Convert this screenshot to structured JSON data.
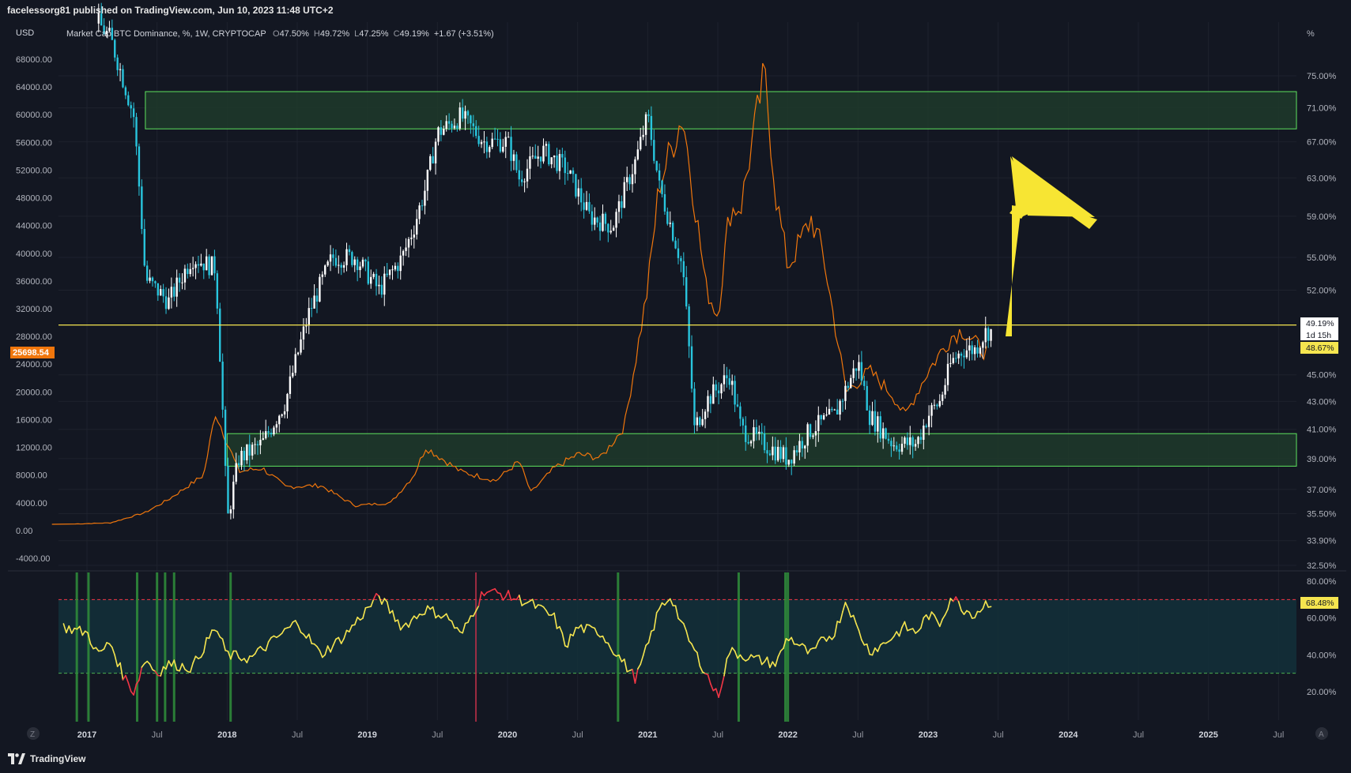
{
  "header": {
    "published": "facelessorg81 published on TradingView.com, Jun 10, 2023 11:48 UTC+2"
  },
  "legend": {
    "currency": "USD",
    "symbol": "Market Cap BTC Dominance, %, 1W, CRYPTOCAP",
    "o_label": "O",
    "o": "47.50%",
    "h_label": "H",
    "h": "49.72%",
    "l_label": "L",
    "l": "47.25%",
    "c_label": "C",
    "c": "49.19%",
    "change": "+1.67 (+3.51%)"
  },
  "left_price_tag": "25698.54",
  "right_tags": {
    "current": "49.19%",
    "countdown": "1d 15h",
    "secondary": "48.67%",
    "rsi": "68.48%"
  },
  "right_unit": "%",
  "bottom_buttons": {
    "left": "Z",
    "right": "A"
  },
  "footer": {
    "brand": "TradingView"
  },
  "colors": {
    "background": "#131722",
    "candle_up": "#ffffff",
    "candle_down": "#29c6de",
    "btc_line": "#f0760c",
    "zone_fill": "#1e3a2a",
    "zone_border": "#5ee35e",
    "yellow_line": "#f5e54f",
    "arrow": "#f7e533",
    "rsi_line": "#f5e54f",
    "rsi_overbought": "#f23645",
    "rsi_band": "#13303a",
    "signal_green": "#2f8a3a",
    "signal_red": "#c0304a"
  },
  "chart_data": [
    {
      "type": "candlestick",
      "title": "Market Cap BTC Dominance, %, 1W, CRYPTOCAP",
      "right_axis_ticks": [
        "75.00%",
        "71.00%",
        "67.00%",
        "63.00%",
        "59.00%",
        "55.00%",
        "52.00%",
        "49.00%",
        "45.00%",
        "43.00%",
        "41.00%",
        "39.00%",
        "37.00%",
        "35.50%",
        "33.90%",
        "32.50%"
      ],
      "left_axis_ticks": [
        "68000.00",
        "64000.00",
        "60000.00",
        "56000.00",
        "52000.00",
        "48000.00",
        "44000.00",
        "40000.00",
        "36000.00",
        "32000.00",
        "28000.00",
        "24000.00",
        "20000.00",
        "16000.00",
        "12000.00",
        "8000.00",
        "4000.00",
        "0.00",
        "-4000.00"
      ],
      "x_ticks": [
        "2017",
        "Jul",
        "2018",
        "Jul",
        "2019",
        "Jul",
        "2020",
        "Jul",
        "2021",
        "Jul",
        "2022",
        "Jul",
        "2023",
        "Jul",
        "2024",
        "Jul",
        "2025",
        "Jul"
      ],
      "dominance_anchors": [
        [
          "2017-01",
          84
        ],
        [
          "2017-03",
          80
        ],
        [
          "2017-05",
          70
        ],
        [
          "2017-06",
          53
        ],
        [
          "2017-08",
          51
        ],
        [
          "2017-10",
          55
        ],
        [
          "2017-12",
          54
        ],
        [
          "2018-01",
          35
        ],
        [
          "2018-02",
          39
        ],
        [
          "2018-04",
          40
        ],
        [
          "2018-06",
          43
        ],
        [
          "2018-08",
          50
        ],
        [
          "2018-10",
          55
        ],
        [
          "2018-12",
          55
        ],
        [
          "2019-02",
          52
        ],
        [
          "2019-04",
          55
        ],
        [
          "2019-05",
          58
        ],
        [
          "2019-06",
          62
        ],
        [
          "2019-07",
          68
        ],
        [
          "2019-09",
          70
        ],
        [
          "2019-11",
          67
        ],
        [
          "2020-01",
          67
        ],
        [
          "2020-02",
          63
        ],
        [
          "2020-04",
          66
        ],
        [
          "2020-06",
          64
        ],
        [
          "2020-08",
          59
        ],
        [
          "2020-10",
          58
        ],
        [
          "2020-12",
          65
        ],
        [
          "2021-01",
          70
        ],
        [
          "2021-02",
          62
        ],
        [
          "2021-04",
          54
        ],
        [
          "2021-05",
          41
        ],
        [
          "2021-06",
          43
        ],
        [
          "2021-08",
          45
        ],
        [
          "2021-09",
          41
        ],
        [
          "2021-11",
          40
        ],
        [
          "2022-01",
          39
        ],
        [
          "2022-03",
          41
        ],
        [
          "2022-05",
          42
        ],
        [
          "2022-07",
          46
        ],
        [
          "2022-08",
          42
        ],
        [
          "2022-10",
          40
        ],
        [
          "2022-12",
          40
        ],
        [
          "2023-01",
          42
        ],
        [
          "2023-02",
          43
        ],
        [
          "2023-03",
          46
        ],
        [
          "2023-04",
          47
        ],
        [
          "2023-05",
          47
        ],
        [
          "2023-06",
          48.5
        ]
      ],
      "btc_price_anchors": [
        [
          "2016-12",
          950
        ],
        [
          "2017-03",
          1100
        ],
        [
          "2017-06",
          2600
        ],
        [
          "2017-08",
          4500
        ],
        [
          "2017-11",
          8000
        ],
        [
          "2017-12",
          17000
        ],
        [
          "2018-02",
          8500
        ],
        [
          "2018-04",
          9000
        ],
        [
          "2018-06",
          6300
        ],
        [
          "2018-09",
          6500
        ],
        [
          "2018-11",
          4500
        ],
        [
          "2018-12",
          3600
        ],
        [
          "2019-03",
          4000
        ],
        [
          "2019-05",
          8000
        ],
        [
          "2019-06",
          12000
        ],
        [
          "2019-09",
          8500
        ],
        [
          "2019-12",
          7200
        ],
        [
          "2020-02",
          10000
        ],
        [
          "2020-03",
          5500
        ],
        [
          "2020-05",
          9000
        ],
        [
          "2020-07",
          11000
        ],
        [
          "2020-09",
          10500
        ],
        [
          "2020-11",
          15000
        ],
        [
          "2020-12",
          25000
        ],
        [
          "2021-01",
          35000
        ],
        [
          "2021-02",
          50000
        ],
        [
          "2021-04",
          60000
        ],
        [
          "2021-06",
          35000
        ],
        [
          "2021-07",
          31000
        ],
        [
          "2021-08",
          46000
        ],
        [
          "2021-09",
          47000
        ],
        [
          "2021-11",
          66000
        ],
        [
          "2021-12",
          48000
        ],
        [
          "2022-01",
          38000
        ],
        [
          "2022-03",
          45000
        ],
        [
          "2022-04",
          40000
        ],
        [
          "2022-05",
          30000
        ],
        [
          "2022-06",
          20000
        ],
        [
          "2022-08",
          23000
        ],
        [
          "2022-10",
          19500
        ],
        [
          "2022-11",
          16500
        ],
        [
          "2023-01",
          23000
        ],
        [
          "2023-03",
          28000
        ],
        [
          "2023-04",
          29000
        ],
        [
          "2023-05",
          27000
        ],
        [
          "2023-06",
          25700
        ]
      ],
      "zones": [
        {
          "top_pct": 73,
          "bottom_pct": 68.5
        },
        {
          "top_pct": 40.7,
          "bottom_pct": 38.5
        }
      ],
      "horizontal_line_pct": 49,
      "current_value": 49.19
    },
    {
      "type": "line",
      "title": "RSI",
      "y_ticks": [
        "80.00%",
        "60.00%",
        "40.00%",
        "20.00%"
      ],
      "ylim": [
        10,
        85
      ],
      "overbought": 70,
      "oversold": 30,
      "rsi_anchors": [
        [
          "2016-11",
          55
        ],
        [
          "2017-01",
          52
        ],
        [
          "2017-02",
          40
        ],
        [
          "2017-03",
          47
        ],
        [
          "2017-04",
          30
        ],
        [
          "2017-05",
          20
        ],
        [
          "2017-06",
          38
        ],
        [
          "2017-07",
          30
        ],
        [
          "2017-08",
          35
        ],
        [
          "2017-10",
          33
        ],
        [
          "2017-12",
          55
        ],
        [
          "2018-01",
          40
        ],
        [
          "2018-03",
          38
        ],
        [
          "2018-05",
          48
        ],
        [
          "2018-07",
          58
        ],
        [
          "2018-09",
          40
        ],
        [
          "2018-11",
          50
        ],
        [
          "2019-01",
          65
        ],
        [
          "2019-02",
          72
        ],
        [
          "2019-04",
          55
        ],
        [
          "2019-06",
          65
        ],
        [
          "2019-08",
          60
        ],
        [
          "2019-09",
          50
        ],
        [
          "2019-11",
          75
        ],
        [
          "2020-01",
          72
        ],
        [
          "2020-03",
          68
        ],
        [
          "2020-05",
          60
        ],
        [
          "2020-06",
          45
        ],
        [
          "2020-07",
          55
        ],
        [
          "2020-09",
          52
        ],
        [
          "2020-11",
          35
        ],
        [
          "2020-12",
          27
        ],
        [
          "2021-01",
          45
        ],
        [
          "2021-02",
          65
        ],
        [
          "2021-03",
          72
        ],
        [
          "2021-04",
          55
        ],
        [
          "2021-05",
          42
        ],
        [
          "2021-06",
          30
        ],
        [
          "2021-07",
          17
        ],
        [
          "2021-08",
          42
        ],
        [
          "2021-10",
          38
        ],
        [
          "2021-12",
          35
        ],
        [
          "2022-01",
          50
        ],
        [
          "2022-03",
          40
        ],
        [
          "2022-04",
          48
        ],
        [
          "2022-05",
          52
        ],
        [
          "2022-06",
          70
        ],
        [
          "2022-07",
          53
        ],
        [
          "2022-08",
          42
        ],
        [
          "2022-09",
          45
        ],
        [
          "2022-11",
          55
        ],
        [
          "2022-12",
          52
        ],
        [
          "2023-01",
          62
        ],
        [
          "2023-02",
          57
        ],
        [
          "2023-03",
          72
        ],
        [
          "2023-04",
          65
        ],
        [
          "2023-05",
          62
        ],
        [
          "2023-06",
          68.48
        ]
      ],
      "green_signal_dates": [
        "2016-12-05",
        "2017-01-05",
        "2017-05-10",
        "2017-07-01",
        "2017-07-22",
        "2017-08-15",
        "2018-01-10",
        "2020-10-15",
        "2021-08-25",
        "2021-12-25",
        "2022-01-01"
      ],
      "red_signal_dates": [
        "2019-10-10"
      ]
    }
  ]
}
